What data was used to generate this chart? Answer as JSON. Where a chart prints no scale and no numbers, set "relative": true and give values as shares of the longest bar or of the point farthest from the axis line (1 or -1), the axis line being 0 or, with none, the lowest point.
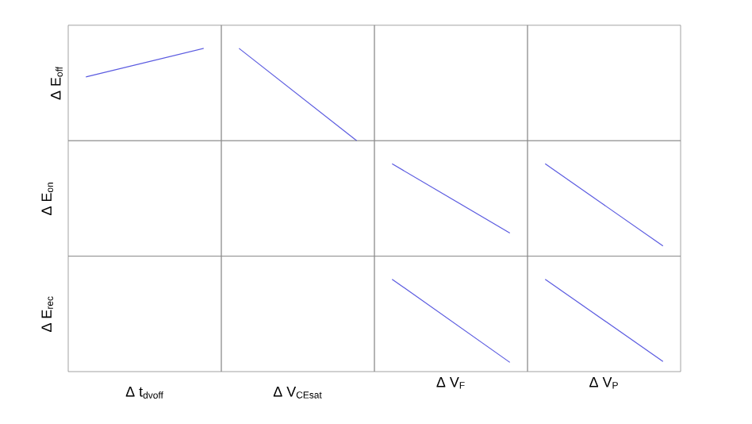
{
  "chart_data": [
    {
      "type": "line",
      "relative": true,
      "ylabel": "Δ E$_{off}$",
      "categories": [
        null,
        null
      ],
      "values": [
        0.69,
        1
      ],
      "color": "#5a5ae0"
    },
    {
      "type": "line",
      "relative": true,
      "categories": [
        null,
        null
      ],
      "values": [
        1,
        0
      ],
      "color": "#5a5ae0"
    },
    {
      "type": "other"
    },
    {
      "type": "other"
    },
    {
      "type": "other",
      "ylabel": "Δ E$_{on}$"
    },
    {
      "type": "other"
    },
    {
      "type": "line",
      "relative": true,
      "categories": [
        null,
        null
      ],
      "values": [
        1,
        0.25
      ],
      "color": "#5a5ae0"
    },
    {
      "type": "line",
      "relative": true,
      "categories": [
        null,
        null
      ],
      "values": [
        1,
        0.11
      ],
      "color": "#5a5ae0"
    },
    {
      "type": "other",
      "ylabel": "Δ E$_{rec}$",
      "xlabel": "Δ t$_{dvoff}$"
    },
    {
      "type": "other",
      "xlabel": "Δ V$_{CEsat}$"
    },
    {
      "type": "line",
      "relative": true,
      "xlabel": "Δ V$_{F}$",
      "categories": [
        null,
        null
      ],
      "values": [
        1,
        0.1
      ],
      "color": "#5a5ae0"
    },
    {
      "type": "line",
      "relative": true,
      "xlabel": "Δ V$_{P}$",
      "categories": [
        null,
        null
      ],
      "values": [
        1,
        0.11
      ],
      "color": "#5a5ae0"
    }
  ]
}
